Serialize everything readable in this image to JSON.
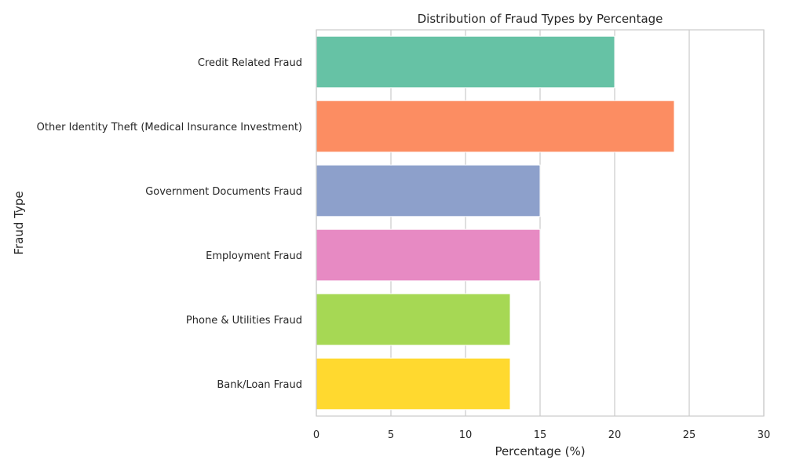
{
  "chart_data": {
    "type": "bar",
    "orientation": "horizontal",
    "title": "Distribution of Fraud Types by Percentage",
    "xlabel": "Percentage (%)",
    "ylabel": "Fraud Type",
    "xlim": [
      0,
      30
    ],
    "xticks": [
      0,
      5,
      10,
      15,
      20,
      25,
      30
    ],
    "grid": true,
    "categories": [
      "Credit Related Fraud",
      "Other Identity Theft (Medical Insurance Investment)",
      "Government Documents Fraud",
      "Employment Fraud",
      "Phone & Utilities Fraud",
      "Bank/Loan Fraud"
    ],
    "values": [
      20,
      24,
      15,
      15,
      13,
      13
    ],
    "colors": [
      "#66c2a5",
      "#fc8d62",
      "#8da0cb",
      "#e78ac3",
      "#a6d854",
      "#ffd92f"
    ]
  }
}
